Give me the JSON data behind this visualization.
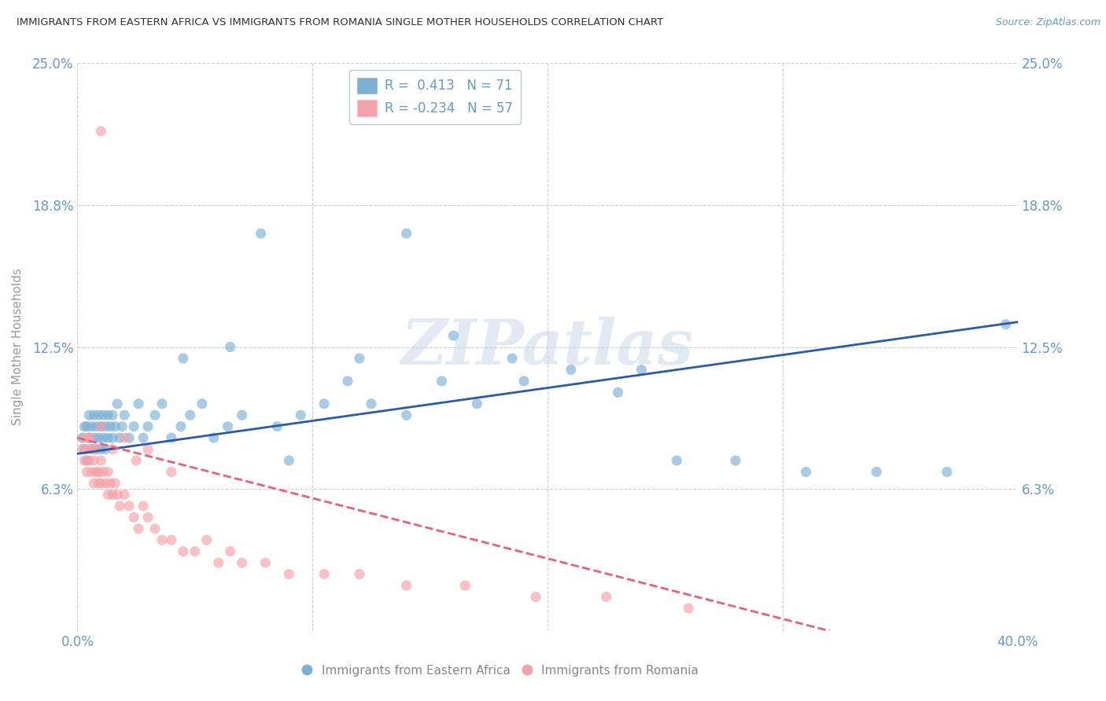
{
  "title": "IMMIGRANTS FROM EASTERN AFRICA VS IMMIGRANTS FROM ROMANIA SINGLE MOTHER HOUSEHOLDS CORRELATION CHART",
  "source": "Source: ZipAtlas.com",
  "ylabel": "Single Mother Households",
  "xlim": [
    0.0,
    0.4
  ],
  "ylim": [
    0.0,
    0.25
  ],
  "yticks": [
    0.0,
    0.0625,
    0.125,
    0.1875,
    0.25
  ],
  "ytick_labels_left": [
    "",
    "6.3%",
    "12.5%",
    "18.8%",
    "25.0%"
  ],
  "ytick_labels_right": [
    "",
    "6.3%",
    "12.5%",
    "18.8%",
    "25.0%"
  ],
  "xticks": [
    0.0,
    0.1,
    0.2,
    0.3,
    0.4
  ],
  "xtick_labels": [
    "0.0%",
    "",
    "",
    "",
    "40.0%"
  ],
  "blue_R": 0.413,
  "blue_N": 71,
  "pink_R": -0.234,
  "pink_N": 57,
  "blue_color": "#7BAFD4",
  "pink_color": "#F4A0A8",
  "blue_line_color": "#2B5BA8",
  "pink_line_color": "#E8607A",
  "watermark": "ZIPatlas",
  "background_color": "#FFFFFF",
  "grid_color": "#CCCCDD",
  "title_color": "#333333",
  "axis_label_color": "#6699CC",
  "tick_color": "#6699CC",
  "legend_label_blue": "Immigrants from Eastern Africa",
  "legend_label_pink": "Immigrants from Romania",
  "blue_x": [
    0.002,
    0.003,
    0.003,
    0.004,
    0.004,
    0.005,
    0.005,
    0.006,
    0.006,
    0.007,
    0.007,
    0.008,
    0.008,
    0.009,
    0.009,
    0.01,
    0.01,
    0.011,
    0.011,
    0.012,
    0.012,
    0.013,
    0.013,
    0.014,
    0.015,
    0.015,
    0.016,
    0.017,
    0.018,
    0.019,
    0.02,
    0.022,
    0.024,
    0.026,
    0.028,
    0.03,
    0.033,
    0.036,
    0.04,
    0.044,
    0.048,
    0.053,
    0.058,
    0.064,
    0.07,
    0.078,
    0.085,
    0.095,
    0.105,
    0.115,
    0.125,
    0.14,
    0.155,
    0.17,
    0.19,
    0.21,
    0.23,
    0.255,
    0.28,
    0.31,
    0.34,
    0.37,
    0.395,
    0.14,
    0.24,
    0.16,
    0.185,
    0.045,
    0.065,
    0.12,
    0.09
  ],
  "blue_y": [
    0.085,
    0.09,
    0.08,
    0.09,
    0.075,
    0.085,
    0.095,
    0.08,
    0.09,
    0.085,
    0.095,
    0.08,
    0.09,
    0.085,
    0.095,
    0.09,
    0.08,
    0.085,
    0.095,
    0.09,
    0.08,
    0.095,
    0.085,
    0.09,
    0.095,
    0.085,
    0.09,
    0.1,
    0.085,
    0.09,
    0.095,
    0.085,
    0.09,
    0.1,
    0.085,
    0.09,
    0.095,
    0.1,
    0.085,
    0.09,
    0.095,
    0.1,
    0.085,
    0.09,
    0.095,
    0.175,
    0.09,
    0.095,
    0.1,
    0.11,
    0.1,
    0.095,
    0.11,
    0.1,
    0.11,
    0.115,
    0.105,
    0.075,
    0.075,
    0.07,
    0.07,
    0.07,
    0.135,
    0.175,
    0.115,
    0.13,
    0.12,
    0.12,
    0.125,
    0.12,
    0.075
  ],
  "pink_x": [
    0.002,
    0.003,
    0.003,
    0.004,
    0.004,
    0.005,
    0.005,
    0.006,
    0.006,
    0.007,
    0.007,
    0.008,
    0.008,
    0.009,
    0.009,
    0.01,
    0.01,
    0.011,
    0.012,
    0.013,
    0.013,
    0.014,
    0.015,
    0.016,
    0.017,
    0.018,
    0.02,
    0.022,
    0.024,
    0.026,
    0.028,
    0.03,
    0.033,
    0.036,
    0.04,
    0.045,
    0.05,
    0.055,
    0.06,
    0.065,
    0.07,
    0.08,
    0.09,
    0.105,
    0.12,
    0.14,
    0.165,
    0.195,
    0.225,
    0.26,
    0.005,
    0.01,
    0.015,
    0.02,
    0.025,
    0.03,
    0.04
  ],
  "pink_y": [
    0.08,
    0.075,
    0.085,
    0.08,
    0.07,
    0.075,
    0.085,
    0.07,
    0.08,
    0.075,
    0.065,
    0.07,
    0.08,
    0.065,
    0.07,
    0.075,
    0.065,
    0.07,
    0.065,
    0.06,
    0.07,
    0.065,
    0.06,
    0.065,
    0.06,
    0.055,
    0.06,
    0.055,
    0.05,
    0.045,
    0.055,
    0.05,
    0.045,
    0.04,
    0.04,
    0.035,
    0.035,
    0.04,
    0.03,
    0.035,
    0.03,
    0.03,
    0.025,
    0.025,
    0.025,
    0.02,
    0.02,
    0.015,
    0.015,
    0.01,
    0.085,
    0.09,
    0.08,
    0.085,
    0.075,
    0.08,
    0.07
  ],
  "pink_outlier_x": [
    0.01
  ],
  "pink_outlier_y": [
    0.22
  ]
}
